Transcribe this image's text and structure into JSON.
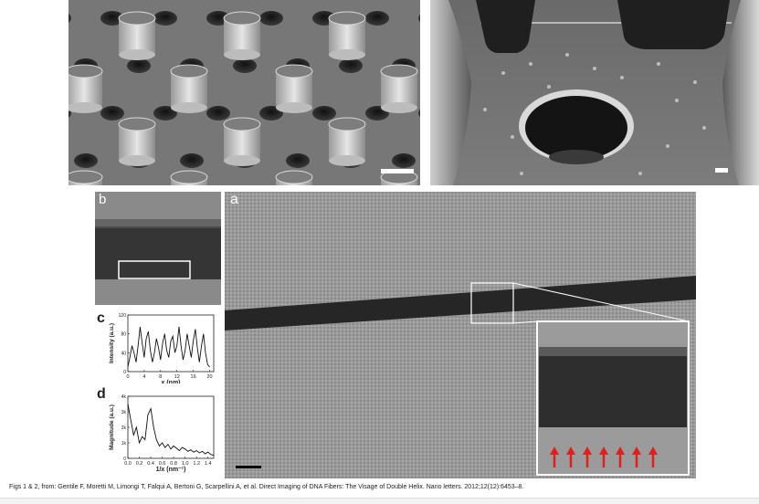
{
  "figure": {
    "caption": "Figs 1 & 2, from: Gentile F, Moretti M, Limongi T, Falqui A, Bertoni G, Scarpellini A, et al. Direct Imaging of DNA Fibers: The Visage of Double Helix. Nano letters. 2012;12(12):6453–8.",
    "panel_labels": {
      "a": "a",
      "b": "b",
      "c": "c",
      "d": "d"
    }
  },
  "chart_data": [
    {
      "type": "line",
      "panel": "c",
      "xlabel": "x (nm)",
      "ylabel": "Intensity (a.u.)",
      "xlim": [
        0,
        21
      ],
      "ylim": [
        0,
        120
      ],
      "xticks": [
        "0",
        "4",
        "8",
        "12",
        "16",
        "20"
      ],
      "yticks": [
        "0",
        "40",
        "80",
        "120"
      ],
      "series": [
        {
          "x": [
            0,
            0.5,
            1,
            1.5,
            2,
            2.5,
            3,
            3.5,
            4,
            4.5,
            5,
            5.5,
            6,
            6.5,
            7,
            7.5,
            8,
            8.5,
            9,
            9.5,
            10,
            10.5,
            11,
            11.5,
            12,
            12.5,
            13,
            13.5,
            14,
            14.5,
            15,
            15.5,
            16,
            16.5,
            17,
            17.5,
            18,
            18.5,
            19,
            19.5,
            20
          ],
          "y": [
            10,
            30,
            55,
            40,
            20,
            55,
            95,
            60,
            30,
            70,
            85,
            45,
            20,
            40,
            70,
            50,
            25,
            60,
            80,
            45,
            30,
            65,
            75,
            40,
            55,
            95,
            55,
            25,
            45,
            80,
            55,
            30,
            65,
            90,
            50,
            20,
            55,
            80,
            40,
            15,
            10
          ]
        }
      ]
    },
    {
      "type": "line",
      "panel": "d",
      "xlabel": "1/x (nm⁻¹)",
      "ylabel": "Magnitude (a.u.)",
      "xlim": [
        0,
        1.5
      ],
      "ylim": [
        0,
        4000
      ],
      "xticks": [
        "0.0",
        "0.2",
        "0.4",
        "0.6",
        "0.8",
        "1.0",
        "1.2",
        "1.4"
      ],
      "yticks": [
        "0",
        "1k",
        "2k",
        "3k",
        "4k"
      ],
      "series": [
        {
          "x": [
            0,
            0.05,
            0.1,
            0.15,
            0.2,
            0.25,
            0.3,
            0.35,
            0.4,
            0.45,
            0.5,
            0.55,
            0.6,
            0.65,
            0.7,
            0.75,
            0.8,
            0.85,
            0.9,
            0.95,
            1.0,
            1.05,
            1.1,
            1.15,
            1.2,
            1.25,
            1.3,
            1.35,
            1.4,
            1.45,
            1.5
          ],
          "y": [
            3500,
            2500,
            1500,
            2000,
            1000,
            1400,
            1200,
            2800,
            3200,
            2000,
            1200,
            800,
            1000,
            700,
            900,
            600,
            800,
            650,
            500,
            700,
            600,
            450,
            550,
            400,
            500,
            350,
            450,
            300,
            400,
            250,
            200
          ]
        }
      ]
    }
  ]
}
